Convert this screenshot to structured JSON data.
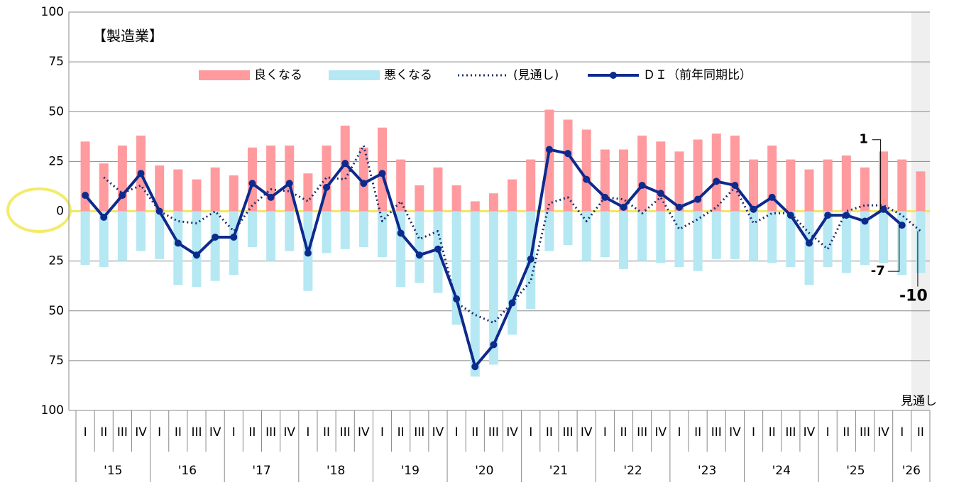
{
  "chart_data": {
    "type": "combo",
    "title": "【製造業】",
    "shade_label": "見通し",
    "categories": [
      "I",
      "II",
      "III",
      "IV",
      "I",
      "II",
      "III",
      "IV",
      "I",
      "II",
      "III",
      "IV",
      "I",
      "II",
      "III",
      "IV",
      "I",
      "II",
      "III",
      "IV",
      "I",
      "II",
      "III",
      "IV",
      "I",
      "II",
      "III",
      "IV",
      "I",
      "II",
      "III",
      "IV",
      "I",
      "II",
      "III",
      "IV",
      "I",
      "II",
      "III",
      "IV",
      "I",
      "II",
      "III",
      "IV",
      "I",
      "II"
    ],
    "years": [
      "'15",
      "'16",
      "'17",
      "'18",
      "'19",
      "'20",
      "'21",
      "'22",
      "'23",
      "'24",
      "'25",
      "'26"
    ],
    "ylim": [
      -100,
      100
    ],
    "yticks": [
      100,
      75,
      50,
      25,
      0,
      {
        "value": -25,
        "label": "25"
      },
      {
        "value": -50,
        "label": "50"
      },
      {
        "value": -75,
        "label": "75"
      },
      {
        "value": -100,
        "label": "100"
      }
    ],
    "grid": true,
    "series": [
      {
        "name": "良くなる",
        "type": "bar",
        "color": "#ff9a9e",
        "values": [
          35,
          24,
          33,
          38,
          23,
          21,
          16,
          22,
          18,
          32,
          33,
          33,
          19,
          33,
          43,
          32,
          42,
          26,
          13,
          22,
          13,
          5,
          9,
          16,
          26,
          51,
          46,
          41,
          31,
          31,
          38,
          35,
          30,
          36,
          39,
          38,
          26,
          33,
          26,
          21,
          26,
          28,
          22,
          30,
          26,
          20
        ]
      },
      {
        "name": "悪くなる",
        "type": "bar",
        "color": "#b5e8f3",
        "values": [
          -27,
          -28,
          -25,
          -20,
          -24,
          -37,
          -38,
          -35,
          -32,
          -18,
          -25,
          -20,
          -40,
          -21,
          -19,
          -18,
          -23,
          -38,
          -36,
          -41,
          -57,
          -83,
          -77,
          -62,
          -49,
          -20,
          -17,
          -25,
          -23,
          -29,
          -25,
          -26,
          -28,
          -30,
          -24,
          -24,
          -25,
          -26,
          -28,
          -37,
          -28,
          -31,
          -27,
          -26,
          -32,
          -31
        ]
      },
      {
        "name": "(見通し)",
        "type": "dotted",
        "color": "#1f2f6e",
        "values": [
          null,
          17,
          9,
          13,
          0,
          -5,
          -6,
          0,
          -10,
          3,
          11,
          10,
          5,
          17,
          16,
          33,
          -5,
          5,
          -14,
          -10,
          -46,
          -52,
          -56,
          -46,
          -35,
          4,
          7,
          -5,
          7,
          6,
          -1,
          7,
          -9,
          -4,
          2,
          12,
          -6,
          -1,
          -1,
          -11,
          -19,
          0,
          3,
          3,
          -2,
          -10
        ]
      },
      {
        "name": "ＤＩ（前年同期比）",
        "type": "line",
        "color": "#0d2a8c",
        "values": [
          8,
          -3,
          8,
          19,
          0,
          -16,
          -22,
          -13,
          -13,
          14,
          7,
          14,
          -21,
          12,
          24,
          14,
          19,
          -11,
          -22,
          -19,
          -44,
          -78,
          -67,
          -46,
          -24,
          31,
          29,
          16,
          7,
          2,
          13,
          9,
          2,
          6,
          15,
          13,
          1,
          7,
          -2,
          -16,
          -2,
          -2,
          -5,
          1,
          -7,
          null
        ]
      }
    ]
  }
}
